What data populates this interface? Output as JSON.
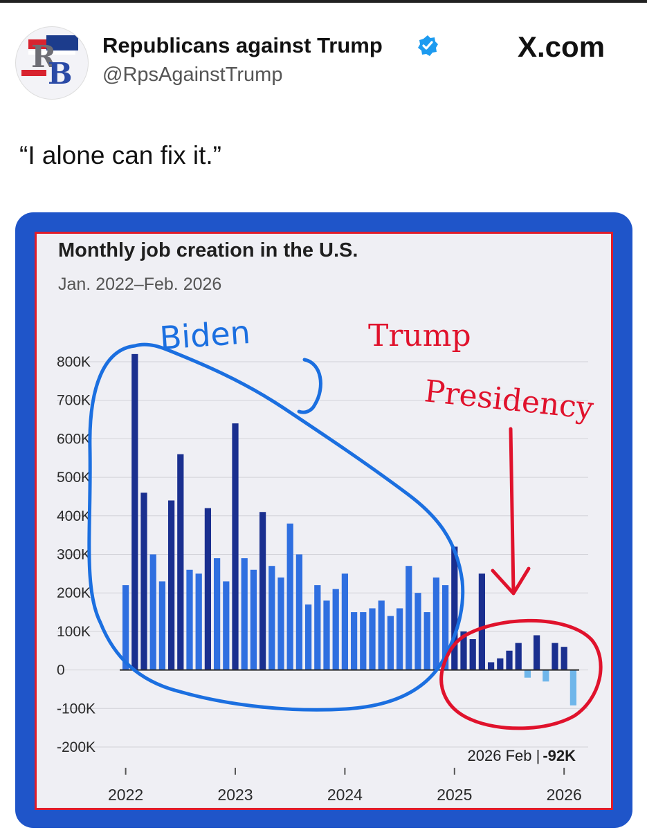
{
  "post": {
    "account_name": "Republicans against Trump",
    "handle": "@RpsAgainstTrump",
    "source": "X.com",
    "text": "“I alone can fix it.”",
    "avatar_letters": "RB"
  },
  "chart_data": {
    "type": "bar",
    "title": "Monthly job creation in the U.S.",
    "subtitle": "Jan. 2022–Feb. 2026",
    "ylim": [
      -200000,
      800000
    ],
    "yticks": [
      {
        "value": 800000,
        "label": "800K"
      },
      {
        "value": 700000,
        "label": "700K"
      },
      {
        "value": 600000,
        "label": "600K"
      },
      {
        "value": 500000,
        "label": "500K"
      },
      {
        "value": 400000,
        "label": "400K"
      },
      {
        "value": 300000,
        "label": "300K"
      },
      {
        "value": 200000,
        "label": "200K"
      },
      {
        "value": 100000,
        "label": "100K"
      },
      {
        "value": 0,
        "label": "0"
      },
      {
        "value": -100000,
        "label": "-100K"
      },
      {
        "value": -200000,
        "label": "-200K"
      }
    ],
    "xticks": [
      {
        "month_index": 0,
        "label": "2022"
      },
      {
        "month_index": 12,
        "label": "2023"
      },
      {
        "month_index": 24,
        "label": "2024"
      },
      {
        "month_index": 36,
        "label": "2025"
      },
      {
        "month_index": 48,
        "label": "2026"
      }
    ],
    "months": [
      "2022-01",
      "2022-02",
      "2022-03",
      "2022-04",
      "2022-05",
      "2022-06",
      "2022-07",
      "2022-08",
      "2022-09",
      "2022-10",
      "2022-11",
      "2022-12",
      "2023-01",
      "2023-02",
      "2023-03",
      "2023-04",
      "2023-05",
      "2023-06",
      "2023-07",
      "2023-08",
      "2023-09",
      "2023-10",
      "2023-11",
      "2023-12",
      "2024-01",
      "2024-02",
      "2024-03",
      "2024-04",
      "2024-05",
      "2024-06",
      "2024-07",
      "2024-08",
      "2024-09",
      "2024-10",
      "2024-11",
      "2024-12",
      "2025-01",
      "2025-02",
      "2025-03",
      "2025-04",
      "2025-05",
      "2025-06",
      "2025-07",
      "2025-08",
      "2025-09",
      "2025-10",
      "2025-11",
      "2025-12",
      "2026-01",
      "2026-02"
    ],
    "values": [
      220000,
      820000,
      460000,
      300000,
      230000,
      440000,
      560000,
      260000,
      250000,
      420000,
      290000,
      230000,
      640000,
      290000,
      260000,
      410000,
      270000,
      240000,
      380000,
      300000,
      170000,
      220000,
      180000,
      210000,
      250000,
      150000,
      150000,
      160000,
      180000,
      140000,
      160000,
      270000,
      200000,
      150000,
      240000,
      220000,
      320000,
      100000,
      80000,
      250000,
      20000,
      30000,
      50000,
      70000,
      -20000,
      90000,
      -30000,
      70000,
      60000,
      -92000
    ],
    "bar_colors": {
      "positive_dark": "#1a2f8f",
      "positive": "#2f6fe0",
      "negative": "#6fb6ea"
    },
    "annotation": {
      "prefix": "2026 Feb |",
      "value": "-92K"
    }
  },
  "handwriting": {
    "biden": "Biden",
    "trump_line1": "Trump",
    "trump_line2": "Presidency",
    "blue": "#1b6fe0",
    "red": "#e0122c"
  }
}
